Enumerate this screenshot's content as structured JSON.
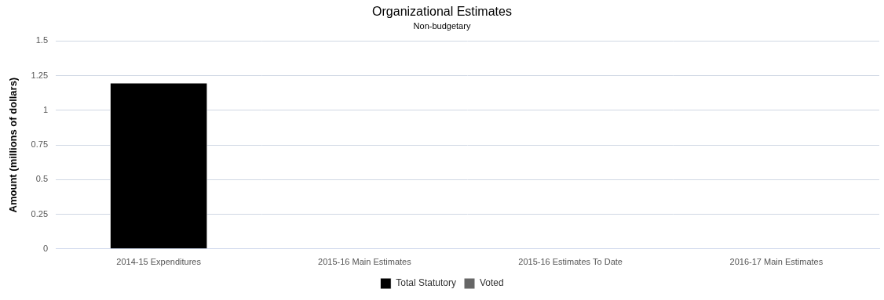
{
  "chart_data": {
    "type": "bar",
    "title": "Organizational Estimates",
    "subtitle": "Non-budgetary",
    "y_label": "Amount (millions of dollars)",
    "categories": [
      "2014-15 Expenditures",
      "2015-16 Main Estimates",
      "2015-16 Estimates To Date",
      "2016-17 Main Estimates"
    ],
    "series": [
      {
        "name": "Total Statutory",
        "color": "#000000",
        "values": [
          1.2,
          0,
          0,
          0
        ]
      },
      {
        "name": "Voted",
        "color": "#666666",
        "values": [
          0,
          0,
          0,
          0
        ]
      }
    ],
    "ylim": [
      0,
      1.5
    ],
    "yticks": [
      0,
      0.25,
      0.5,
      0.75,
      1,
      1.25,
      1.5
    ],
    "grid": true,
    "legend": "bottom",
    "stacked": true
  }
}
